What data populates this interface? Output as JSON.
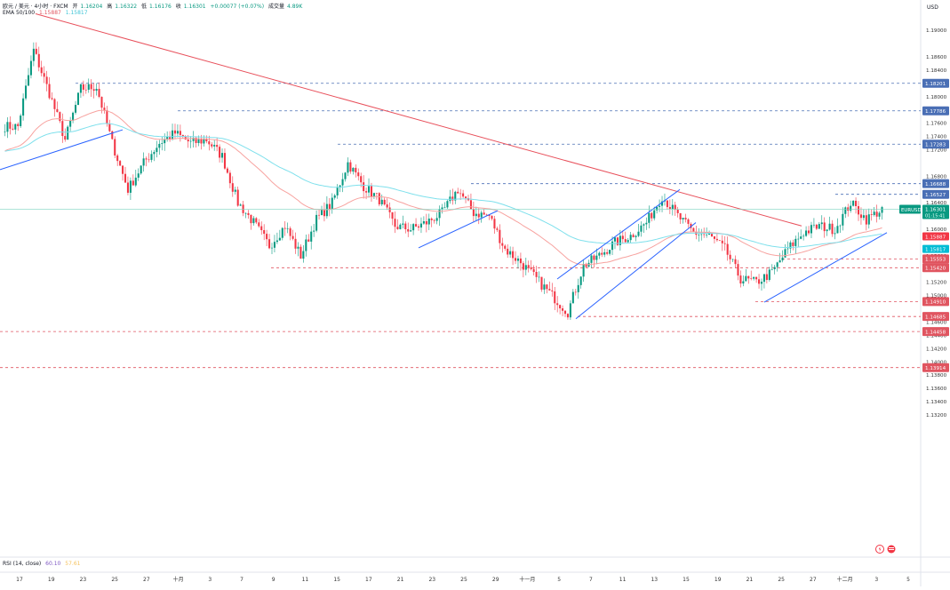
{
  "header": {
    "symbol_line": "欧元 / 美元 · 4小时 · FXCM",
    "open_label": "开",
    "open": "1.16204",
    "high_label": "高",
    "high": "1.16322",
    "low_label": "低",
    "low": "1.16176",
    "close_label": "收",
    "close": "1.16301",
    "change": "+0.00077 (+0.07%)",
    "volume_label": "成交量",
    "volume": "4.89K",
    "ema_label": "EMA 50/100",
    "ema50_value": "1.15887",
    "ema100_value": "1.15817",
    "rsi_label": "RSI (14, close)",
    "rsi_value": "60.10",
    "rsi_ma_value": "57.61"
  },
  "colors": {
    "up": "#089981",
    "down": "#f23645",
    "ema50": "#f7a29f",
    "ema100": "#7ee0ec",
    "downtrend_line": "#e8505b",
    "channel_line": "#2962ff",
    "resistance_dash": "#4a6fb5",
    "support_dash": "#e05560",
    "current_price_line": "#7fd3c0"
  },
  "chart_data": {
    "type": "candlestick",
    "symbol": "EURUSD",
    "currency_label": "USD",
    "current_price": "1.16301",
    "countdown": "01:15:41",
    "y_range": [
      1.1115,
      1.1935
    ],
    "y_ticks": [
      "1.19000",
      "1.18600",
      "1.18400",
      "1.18000",
      "1.17600",
      "1.17400",
      "1.17200",
      "1.16800",
      "1.16400",
      "1.16000",
      "1.15600",
      "1.15200",
      "1.15000",
      "1.14600",
      "1.14400",
      "1.14200",
      "1.14000",
      "1.13800",
      "1.13600",
      "1.13400",
      "1.13200"
    ],
    "x_ticks": [
      "17",
      "19",
      "23",
      "25",
      "27",
      "十月",
      "3",
      "7",
      "9",
      "11",
      "15",
      "17",
      "21",
      "23",
      "25",
      "29",
      "十一月",
      "5",
      "7",
      "11",
      "13",
      "15",
      "19",
      "21",
      "25",
      "27",
      "十二月",
      "3",
      "5"
    ],
    "resistance_levels": [
      "1.18201",
      "1.17786",
      "1.17283",
      "1.16688",
      "1.16527"
    ],
    "support_levels": [
      "1.15553",
      "1.15420",
      "1.14910",
      "1.14685",
      "1.14458",
      "1.13914"
    ],
    "ema50_value": "1.15887",
    "ema100_value": "1.15817",
    "key_points": [
      {
        "label": "17",
        "c": 1.1755
      },
      {
        "label": "18",
        "c": 1.187
      },
      {
        "label": "19",
        "c": 1.1805
      },
      {
        "label": "22",
        "c": 1.1735
      },
      {
        "label": "23",
        "c": 1.1812
      },
      {
        "label": "24",
        "c": 1.1815
      },
      {
        "label": "25",
        "c": 1.173
      },
      {
        "label": "26",
        "c": 1.166
      },
      {
        "label": "29",
        "c": 1.17
      },
      {
        "label": "30",
        "c": 1.173
      },
      {
        "label": "十月",
        "c": 1.1745
      },
      {
        "label": "2",
        "c": 1.173
      },
      {
        "label": "3",
        "c": 1.1735
      },
      {
        "label": "6",
        "c": 1.171
      },
      {
        "label": "7",
        "c": 1.164
      },
      {
        "label": "8",
        "c": 1.161
      },
      {
        "label": "9",
        "c": 1.1575
      },
      {
        "label": "10",
        "c": 1.1605
      },
      {
        "label": "13",
        "c": 1.156
      },
      {
        "label": "14",
        "c": 1.1615
      },
      {
        "label": "15",
        "c": 1.164
      },
      {
        "label": "16",
        "c": 1.17
      },
      {
        "label": "17",
        "c": 1.1665
      },
      {
        "label": "20",
        "c": 1.1645
      },
      {
        "label": "21",
        "c": 1.1605
      },
      {
        "label": "22",
        "c": 1.16
      },
      {
        "label": "23",
        "c": 1.161
      },
      {
        "label": "24",
        "c": 1.1625
      },
      {
        "label": "27",
        "c": 1.166
      },
      {
        "label": "28",
        "c": 1.1625
      },
      {
        "label": "29",
        "c": 1.162
      },
      {
        "label": "30",
        "c": 1.157
      },
      {
        "label": "31",
        "c": 1.155
      },
      {
        "label": "3",
        "c": 1.1525
      },
      {
        "label": "4",
        "c": 1.15
      },
      {
        "label": "5",
        "c": 1.1475
      },
      {
        "label": "6",
        "c": 1.1545
      },
      {
        "label": "7",
        "c": 1.156
      },
      {
        "label": "10",
        "c": 1.158
      },
      {
        "label": "11",
        "c": 1.159
      },
      {
        "label": "12",
        "c": 1.161
      },
      {
        "label": "13",
        "c": 1.165
      },
      {
        "label": "14",
        "c": 1.162
      },
      {
        "label": "17",
        "c": 1.1595
      },
      {
        "label": "18",
        "c": 1.159
      },
      {
        "label": "19",
        "c": 1.157
      },
      {
        "label": "20",
        "c": 1.1525
      },
      {
        "label": "21",
        "c": 1.152
      },
      {
        "label": "24",
        "c": 1.1535
      },
      {
        "label": "25",
        "c": 1.157
      },
      {
        "label": "26",
        "c": 1.1595
      },
      {
        "label": "27",
        "c": 1.1605
      },
      {
        "label": "28",
        "c": 1.16
      },
      {
        "label": "十二月",
        "c": 1.164
      },
      {
        "label": "2",
        "c": 1.1615
      },
      {
        "label": "3",
        "c": 1.163
      }
    ]
  }
}
